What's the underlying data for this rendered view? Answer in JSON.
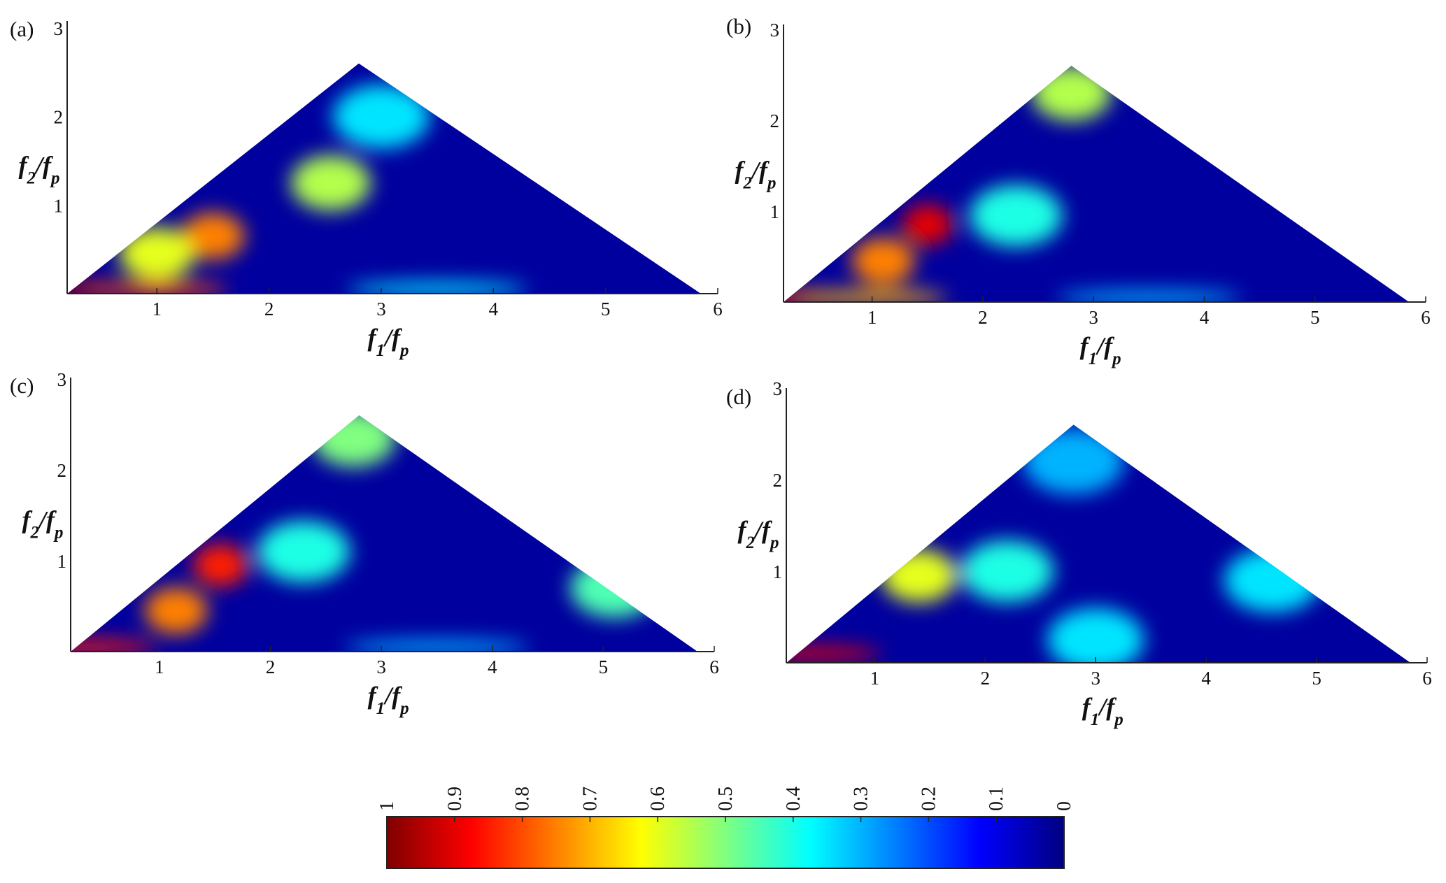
{
  "chart_data": [
    {
      "type": "heatmap",
      "panel_label": "(a)",
      "xlabel": "f1/fp",
      "ylabel": "f2/fp",
      "xlim": [
        0.2,
        6
      ],
      "ylim": [
        0,
        3
      ],
      "x_ticks": [
        "1",
        "2",
        "3",
        "4",
        "5",
        "6"
      ],
      "y_ticks": [
        "1",
        "2",
        "3"
      ],
      "domain": "triangle with vertices (0.2, 0), (2.8, 2.6), (5.85, 0)",
      "features": [
        {
          "x": 0.3,
          "y": 0.05,
          "value": 0.95
        },
        {
          "x": 1.0,
          "y": 0.05,
          "value": 0.8
        },
        {
          "x": 1.5,
          "y": 0.65,
          "value": 0.75
        },
        {
          "x": 1.0,
          "y": 0.45,
          "value": 0.6
        },
        {
          "x": 2.55,
          "y": 1.25,
          "value": 0.55
        },
        {
          "x": 3.0,
          "y": 2.0,
          "value": 0.35
        },
        {
          "x": 3.5,
          "y": 0.05,
          "value": 0.35
        }
      ]
    },
    {
      "type": "heatmap",
      "panel_label": "(b)",
      "xlabel": "f1/fp",
      "ylabel": "f2/fp",
      "xlim": [
        0.2,
        6
      ],
      "ylim": [
        0,
        3
      ],
      "x_ticks": [
        "1",
        "2",
        "3",
        "4",
        "5",
        "6"
      ],
      "y_ticks": [
        "1",
        "2",
        "3"
      ],
      "domain": "triangle with vertices (0.2, 0), (2.8, 2.6), (5.85, 0)",
      "features": [
        {
          "x": 0.35,
          "y": 0.05,
          "value": 0.9
        },
        {
          "x": 1.5,
          "y": 0.85,
          "value": 0.9
        },
        {
          "x": 1.1,
          "y": 0.45,
          "value": 0.75
        },
        {
          "x": 1.0,
          "y": 0.05,
          "value": 0.7
        },
        {
          "x": 2.8,
          "y": 2.3,
          "value": 0.55
        },
        {
          "x": 2.3,
          "y": 0.95,
          "value": 0.4
        },
        {
          "x": 3.5,
          "y": 0.05,
          "value": 0.3
        }
      ]
    },
    {
      "type": "heatmap",
      "panel_label": "(c)",
      "xlabel": "f1/fp",
      "ylabel": "f2/fp",
      "xlim": [
        0.2,
        6
      ],
      "ylim": [
        0,
        3
      ],
      "x_ticks": [
        "1",
        "2",
        "3",
        "4",
        "5",
        "6"
      ],
      "y_ticks": [
        "1",
        "2",
        "3"
      ],
      "domain": "triangle with vertices (0.2, 0), (2.8, 2.6), (5.85, 0)",
      "features": [
        {
          "x": 0.35,
          "y": 0.05,
          "value": 0.85
        },
        {
          "x": 1.55,
          "y": 0.95,
          "value": 0.85
        },
        {
          "x": 1.15,
          "y": 0.45,
          "value": 0.75
        },
        {
          "x": 2.75,
          "y": 2.35,
          "value": 0.5
        },
        {
          "x": 2.3,
          "y": 1.1,
          "value": 0.4
        },
        {
          "x": 5.1,
          "y": 0.7,
          "value": 0.45
        },
        {
          "x": 3.5,
          "y": 0.05,
          "value": 0.3
        }
      ]
    },
    {
      "type": "heatmap",
      "panel_label": "(d)",
      "xlabel": "f1/fp",
      "ylabel": "f2/fp",
      "xlim": [
        0.2,
        6
      ],
      "ylim": [
        0,
        3
      ],
      "x_ticks": [
        "1",
        "2",
        "3",
        "4",
        "5",
        "6"
      ],
      "y_ticks": [
        "1",
        "2",
        "3"
      ],
      "domain": "triangle with vertices (0.2, 0), (2.8, 2.6), (5.85, 0)",
      "features": [
        {
          "x": 0.45,
          "y": 0.1,
          "value": 0.9
        },
        {
          "x": 1.4,
          "y": 0.95,
          "value": 0.6
        },
        {
          "x": 2.2,
          "y": 1.0,
          "value": 0.4
        },
        {
          "x": 2.8,
          "y": 2.2,
          "value": 0.3
        },
        {
          "x": 4.6,
          "y": 0.9,
          "value": 0.35
        },
        {
          "x": 3.0,
          "y": 0.25,
          "value": 0.35
        }
      ]
    }
  ],
  "colorbar": {
    "colormap": "jet",
    "range": [
      0,
      1
    ],
    "orientation": "horizontal, reversed (1 at left, 0 at right)",
    "tick_labels": [
      "1",
      "0.9",
      "0.8",
      "0.7",
      "0.6",
      "0.5",
      "0.4",
      "0.3",
      "0.2",
      "0.1",
      "0"
    ]
  }
}
